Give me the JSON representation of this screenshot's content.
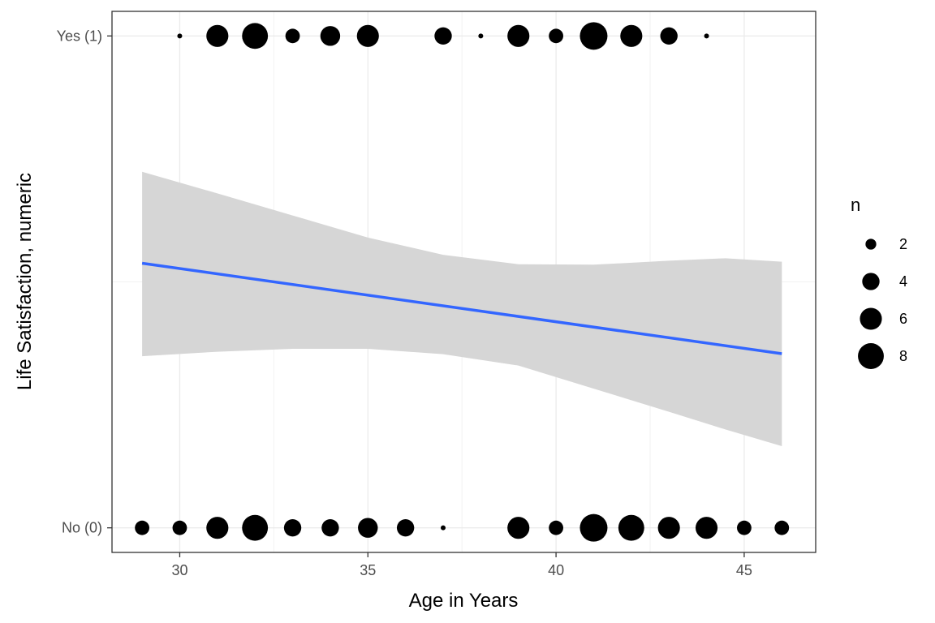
{
  "chart_data": {
    "type": "scatter",
    "xlabel": "Age in Years",
    "ylabel": "Life Satisfaction, numeric",
    "xlim": [
      28.2,
      46.9
    ],
    "ylim": [
      -0.05,
      1.05
    ],
    "x_ticks": [
      30,
      35,
      40,
      45
    ],
    "x_tick_labels": [
      "30",
      "35",
      "40",
      "45"
    ],
    "y_ticks": [
      0,
      1
    ],
    "y_tick_labels": [
      "No (0)",
      "Yes (1)"
    ],
    "grid": true,
    "legend": {
      "title": "n",
      "placement": "right",
      "entries": [
        {
          "label": "2",
          "value": 2
        },
        {
          "label": "4",
          "value": 4
        },
        {
          "label": "6",
          "value": 6
        },
        {
          "label": "8",
          "value": 8
        }
      ]
    },
    "size_range_n": [
      1,
      9
    ],
    "points": [
      {
        "x": 30,
        "y": 1,
        "n": 1
      },
      {
        "x": 31,
        "y": 1,
        "n": 6
      },
      {
        "x": 32,
        "y": 1,
        "n": 8
      },
      {
        "x": 33,
        "y": 1,
        "n": 3
      },
      {
        "x": 34,
        "y": 1,
        "n": 5
      },
      {
        "x": 35,
        "y": 1,
        "n": 6
      },
      {
        "x": 37,
        "y": 1,
        "n": 4
      },
      {
        "x": 38,
        "y": 1,
        "n": 1
      },
      {
        "x": 39,
        "y": 1,
        "n": 6
      },
      {
        "x": 40,
        "y": 1,
        "n": 3
      },
      {
        "x": 41,
        "y": 1,
        "n": 9
      },
      {
        "x": 42,
        "y": 1,
        "n": 6
      },
      {
        "x": 43,
        "y": 1,
        "n": 4
      },
      {
        "x": 44,
        "y": 1,
        "n": 1
      },
      {
        "x": 29,
        "y": 0,
        "n": 3
      },
      {
        "x": 30,
        "y": 0,
        "n": 3
      },
      {
        "x": 31,
        "y": 0,
        "n": 6
      },
      {
        "x": 32,
        "y": 0,
        "n": 8
      },
      {
        "x": 33,
        "y": 0,
        "n": 4
      },
      {
        "x": 34,
        "y": 0,
        "n": 4
      },
      {
        "x": 35,
        "y": 0,
        "n": 5
      },
      {
        "x": 36,
        "y": 0,
        "n": 4
      },
      {
        "x": 37,
        "y": 0,
        "n": 1
      },
      {
        "x": 39,
        "y": 0,
        "n": 6
      },
      {
        "x": 40,
        "y": 0,
        "n": 3
      },
      {
        "x": 41,
        "y": 0,
        "n": 9
      },
      {
        "x": 42,
        "y": 0,
        "n": 8
      },
      {
        "x": 43,
        "y": 0,
        "n": 6
      },
      {
        "x": 44,
        "y": 0,
        "n": 6
      },
      {
        "x": 45,
        "y": 0,
        "n": 3
      },
      {
        "x": 46,
        "y": 0,
        "n": 3
      }
    ],
    "fit_line": {
      "method": "linear",
      "color": "#3366FF",
      "points": [
        {
          "x": 29,
          "y": 0.538
        },
        {
          "x": 46,
          "y": 0.354
        }
      ]
    },
    "confidence_band": {
      "color": "#d6d6d6",
      "upper": [
        {
          "x": 29,
          "y": 0.724
        },
        {
          "x": 31,
          "y": 0.68
        },
        {
          "x": 33,
          "y": 0.635
        },
        {
          "x": 35,
          "y": 0.59
        },
        {
          "x": 37,
          "y": 0.555
        },
        {
          "x": 39,
          "y": 0.536
        },
        {
          "x": 41,
          "y": 0.535
        },
        {
          "x": 43,
          "y": 0.543
        },
        {
          "x": 44.5,
          "y": 0.548
        },
        {
          "x": 46,
          "y": 0.541
        }
      ],
      "lower": [
        {
          "x": 29,
          "y": 0.349
        },
        {
          "x": 31,
          "y": 0.358
        },
        {
          "x": 33,
          "y": 0.364
        },
        {
          "x": 35,
          "y": 0.364
        },
        {
          "x": 37,
          "y": 0.353
        },
        {
          "x": 39,
          "y": 0.33
        },
        {
          "x": 41,
          "y": 0.283
        },
        {
          "x": 43,
          "y": 0.236
        },
        {
          "x": 44.5,
          "y": 0.2
        },
        {
          "x": 46,
          "y": 0.166
        }
      ]
    },
    "point_color": "#000000"
  }
}
